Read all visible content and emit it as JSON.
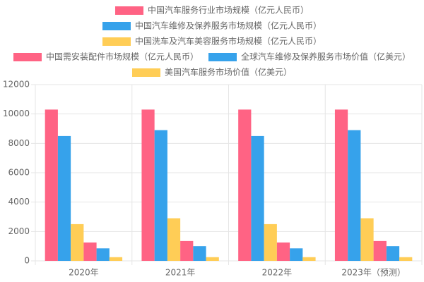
{
  "chart_data": {
    "type": "bar",
    "categories": [
      "2020年",
      "2021年",
      "2022年",
      "2023年（预测）"
    ],
    "series": [
      {
        "name": "中国汽车服务行业市场规模（亿元人民币）",
        "color": "#ff6384",
        "values": [
          10300,
          10300,
          10300,
          10300
        ]
      },
      {
        "name": "中国汽车维修及保养服务市场规模（亿元人民币）",
        "color": "#36a2eb",
        "values": [
          8500,
          8900,
          8500,
          8900
        ]
      },
      {
        "name": "中国洗车及汽车美容服务市场规模（亿元人民币）",
        "color": "#ffcd56",
        "values": [
          2500,
          2900,
          2500,
          2900
        ]
      },
      {
        "name": "中国需安装配件市场规模（亿元人民币）",
        "color": "#ff6384",
        "values": [
          1250,
          1350,
          1250,
          1350
        ]
      },
      {
        "name": "全球汽车维修及保养服务市场价值（亿美元）",
        "color": "#36a2eb",
        "values": [
          850,
          1000,
          850,
          1000
        ]
      },
      {
        "name": "美国汽车服务市场价值（亿美元）",
        "color": "#ffcd56",
        "values": [
          250,
          250,
          250,
          250
        ]
      }
    ],
    "ylim": [
      0,
      12000
    ],
    "yticks": [
      0,
      2000,
      4000,
      6000,
      8000,
      10000,
      12000
    ],
    "grid": true
  }
}
